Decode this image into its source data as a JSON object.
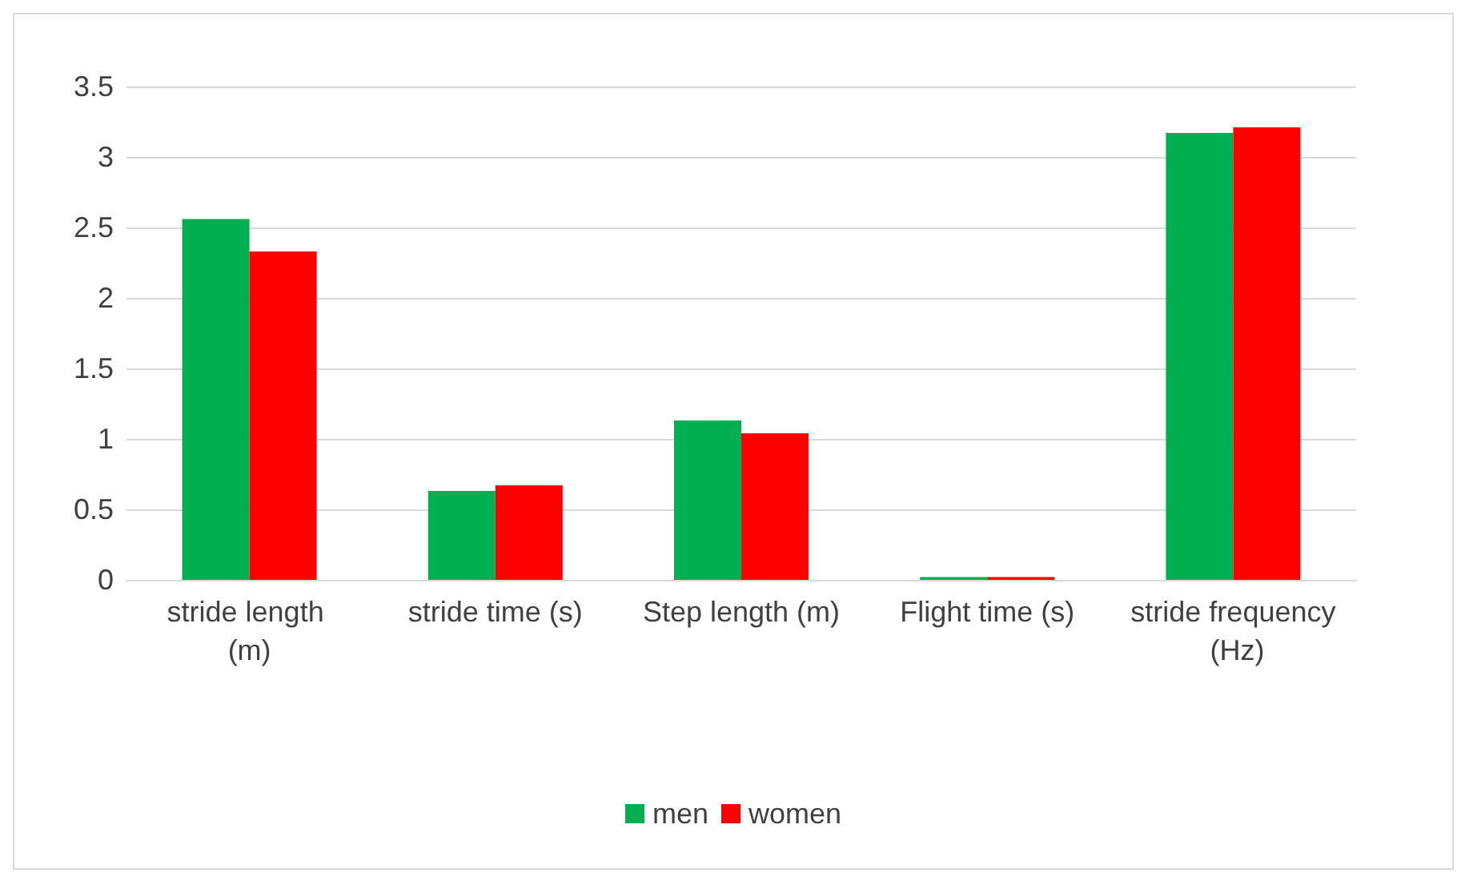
{
  "chart_data": {
    "type": "bar",
    "categories": [
      "stride length (m)",
      "stride time (s)",
      "Step length (m)",
      "Flight time (s)",
      "stride frequency (Hz)"
    ],
    "series": [
      {
        "name": "men",
        "color": "#00b050",
        "values": [
          2.56,
          0.63,
          1.13,
          0.02,
          3.17
        ]
      },
      {
        "name": "women",
        "color": "#ff0000",
        "values": [
          2.33,
          0.67,
          1.04,
          0.02,
          3.21
        ]
      }
    ],
    "ylim": [
      0,
      3.5
    ],
    "yticks": [
      0,
      0.5,
      1,
      1.5,
      2,
      2.5,
      3,
      3.5
    ],
    "grid": "y",
    "legend": "bottom"
  }
}
